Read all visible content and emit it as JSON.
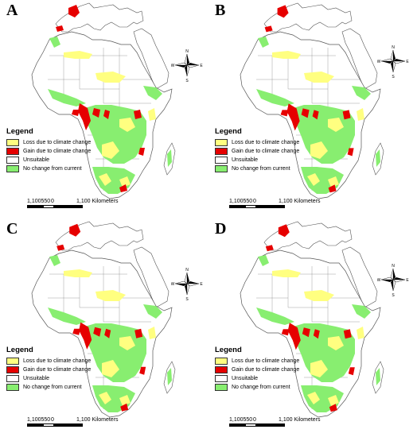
{
  "panels": [
    {
      "letter": "A",
      "variant": 0
    },
    {
      "letter": "B",
      "variant": 1
    },
    {
      "letter": "C",
      "variant": 2
    },
    {
      "letter": "D",
      "variant": 3
    }
  ],
  "legend": {
    "title": "Legend",
    "items": [
      {
        "label": "Loss due to climate change",
        "color": "#ffff80"
      },
      {
        "label": "Gain due to climate change",
        "color": "#e60000"
      },
      {
        "label": "Unsuitable",
        "color": "#ffffff"
      },
      {
        "label": "No change from current",
        "color": "#88ee70"
      }
    ]
  },
  "scale_bar": {
    "label_left": "1,100550",
    "label_zero": "0",
    "label_right": "1,100 Kilometers"
  },
  "compass": {
    "n": "N",
    "s": "S",
    "e": "E",
    "w": "W"
  },
  "colors": {
    "land": "#ffffff",
    "border": "#555555",
    "green": "#88ee70",
    "yellow": "#ffff80",
    "red": "#e60000"
  }
}
